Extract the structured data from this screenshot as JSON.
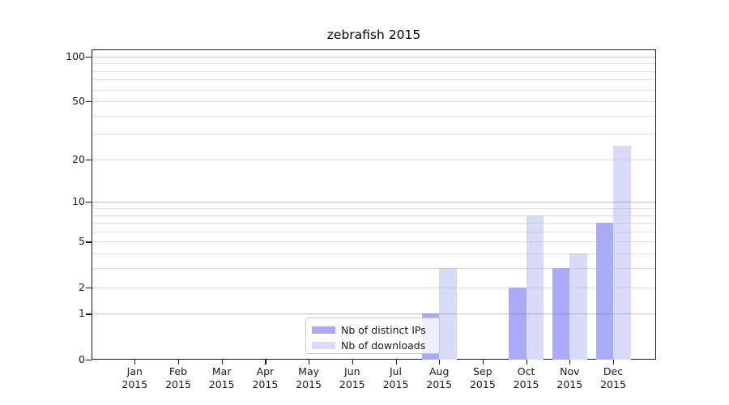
{
  "chart_data": {
    "type": "bar",
    "title": "zebrafish 2015",
    "year_label": "2015",
    "months": [
      "Jan",
      "Feb",
      "Mar",
      "Apr",
      "May",
      "Jun",
      "Jul",
      "Aug",
      "Sep",
      "Oct",
      "Nov",
      "Dec"
    ],
    "categories": [
      "Jan 2015",
      "Feb 2015",
      "Mar 2015",
      "Apr 2015",
      "May 2015",
      "Jun 2015",
      "Jul 2015",
      "Aug 2015",
      "Sep 2015",
      "Oct 2015",
      "Nov 2015",
      "Dec 2015"
    ],
    "series": [
      {
        "name": "Nb of distinct IPs",
        "color": "#aaaaf8",
        "values": [
          0,
          0,
          0,
          0,
          0,
          0,
          0,
          1,
          0,
          2,
          3,
          7
        ]
      },
      {
        "name": "Nb of downloads",
        "color": "#d9d9f8",
        "values": [
          0,
          0,
          0,
          0,
          0,
          0,
          0,
          3,
          0,
          8,
          4,
          25
        ]
      }
    ],
    "xlabel": "",
    "ylabel": "",
    "yscale": "log1p",
    "ylim": [
      0,
      111.4
    ],
    "yticks": [
      0,
      1,
      2,
      5,
      10,
      20,
      50,
      100
    ],
    "grid": "on",
    "grid_major": [
      1,
      10,
      100
    ],
    "grid_minor": [
      2,
      3,
      4,
      5,
      6,
      7,
      8,
      9,
      20,
      30,
      40,
      50,
      60,
      70,
      80,
      90
    ],
    "legend_position": "inside bottom-center-left",
    "background_color": "#ffffff"
  }
}
